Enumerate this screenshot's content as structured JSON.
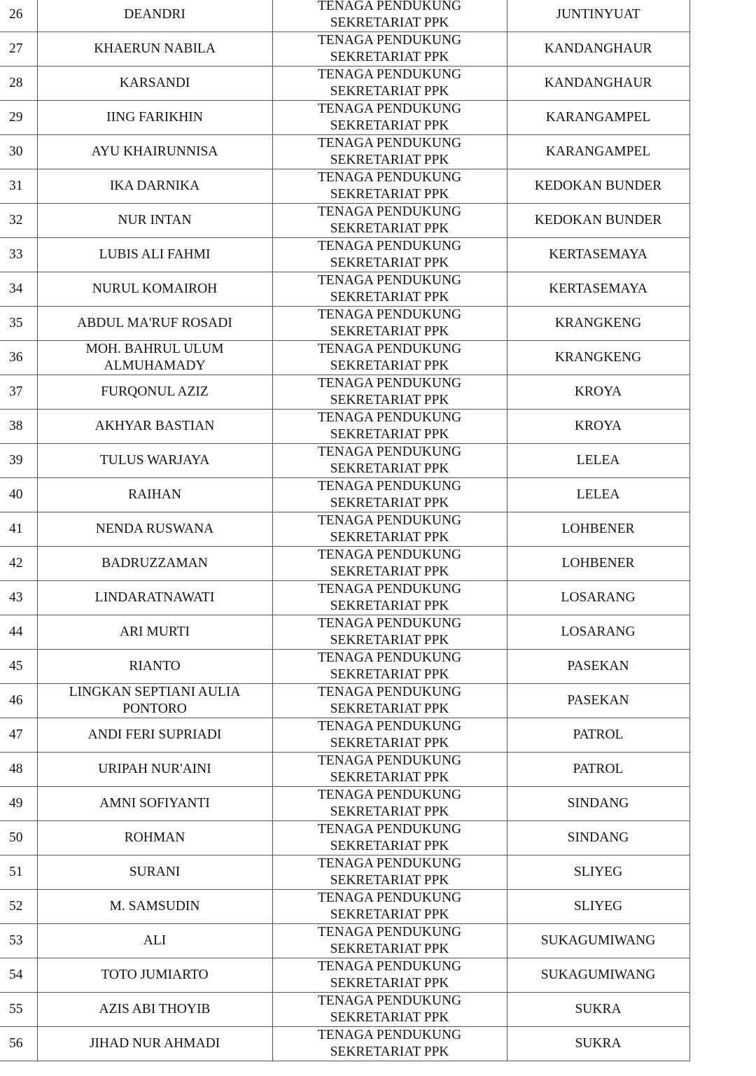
{
  "table": {
    "rows": [
      {
        "no": "26",
        "name": "DEANDRI",
        "position": "TENAGA PENDUKUNG SEKRETARIAT PPK",
        "location": "JUNTINYUAT"
      },
      {
        "no": "27",
        "name": "KHAERUN NABILA",
        "position": "TENAGA PENDUKUNG SEKRETARIAT PPK",
        "location": "KANDANGHAUR"
      },
      {
        "no": "28",
        "name": "KARSANDI",
        "position": "TENAGA PENDUKUNG SEKRETARIAT PPK",
        "location": "KANDANGHAUR"
      },
      {
        "no": "29",
        "name": "IING FARIKHIN",
        "position": "TENAGA PENDUKUNG SEKRETARIAT PPK",
        "location": "KARANGAMPEL"
      },
      {
        "no": "30",
        "name": "AYU KHAIRUNNISA",
        "position": "TENAGA PENDUKUNG SEKRETARIAT PPK",
        "location": "KARANGAMPEL"
      },
      {
        "no": "31",
        "name": "IKA DARNIKA",
        "position": "TENAGA PENDUKUNG SEKRETARIAT PPK",
        "location": "KEDOKAN BUNDER"
      },
      {
        "no": "32",
        "name": "NUR INTAN",
        "position": "TENAGA PENDUKUNG SEKRETARIAT PPK",
        "location": "KEDOKAN BUNDER"
      },
      {
        "no": "33",
        "name": "LUBIS ALI FAHMI",
        "position": "TENAGA PENDUKUNG SEKRETARIAT PPK",
        "location": "KERTASEMAYA"
      },
      {
        "no": "34",
        "name": "NURUL KOMAIROH",
        "position": "TENAGA PENDUKUNG SEKRETARIAT PPK",
        "location": "KERTASEMAYA"
      },
      {
        "no": "35",
        "name": "ABDUL MA'RUF ROSADI",
        "position": "TENAGA PENDUKUNG SEKRETARIAT PPK",
        "location": "KRANGKENG"
      },
      {
        "no": "36",
        "name": "MOH. BAHRUL ULUM ALMUHAMADY",
        "position": "TENAGA PENDUKUNG SEKRETARIAT PPK",
        "location": "KRANGKENG"
      },
      {
        "no": "37",
        "name": "FURQONUL AZIZ",
        "position": "TENAGA PENDUKUNG SEKRETARIAT PPK",
        "location": "KROYA"
      },
      {
        "no": "38",
        "name": "AKHYAR BASTIAN",
        "position": "TENAGA PENDUKUNG SEKRETARIAT PPK",
        "location": "KROYA"
      },
      {
        "no": "39",
        "name": "TULUS WARJAYA",
        "position": "TENAGA PENDUKUNG SEKRETARIAT PPK",
        "location": "LELEA"
      },
      {
        "no": "40",
        "name": "RAIHAN",
        "position": "TENAGA PENDUKUNG SEKRETARIAT PPK",
        "location": "LELEA"
      },
      {
        "no": "41",
        "name": "NENDA RUSWANA",
        "position": "TENAGA PENDUKUNG SEKRETARIAT PPK",
        "location": "LOHBENER"
      },
      {
        "no": "42",
        "name": "BADRUZZAMAN",
        "position": "TENAGA PENDUKUNG SEKRETARIAT PPK",
        "location": "LOHBENER"
      },
      {
        "no": "43",
        "name": "LINDARATNAWATI",
        "position": "TENAGA PENDUKUNG SEKRETARIAT PPK",
        "location": "LOSARANG"
      },
      {
        "no": "44",
        "name": "ARI MURTI",
        "position": "TENAGA PENDUKUNG SEKRETARIAT PPK",
        "location": "LOSARANG"
      },
      {
        "no": "45",
        "name": "RIANTO",
        "position": "TENAGA PENDUKUNG SEKRETARIAT PPK",
        "location": "PASEKAN"
      },
      {
        "no": "46",
        "name": "LINGKAN SEPTIANI AULIA PONTORO",
        "position": "TENAGA PENDUKUNG SEKRETARIAT PPK",
        "location": "PASEKAN"
      },
      {
        "no": "47",
        "name": "ANDI FERI SUPRIADI",
        "position": "TENAGA PENDUKUNG SEKRETARIAT PPK",
        "location": "PATROL"
      },
      {
        "no": "48",
        "name": "URIPAH NUR'AINI",
        "position": "TENAGA PENDUKUNG SEKRETARIAT PPK",
        "location": "PATROL"
      },
      {
        "no": "49",
        "name": "AMNI SOFIYANTI",
        "position": "TENAGA PENDUKUNG SEKRETARIAT PPK",
        "location": "SINDANG"
      },
      {
        "no": "50",
        "name": "ROHMAN",
        "position": "TENAGA PENDUKUNG SEKRETARIAT PPK",
        "location": "SINDANG"
      },
      {
        "no": "51",
        "name": "SURANI",
        "position": "TENAGA PENDUKUNG SEKRETARIAT PPK",
        "location": "SLIYEG"
      },
      {
        "no": "52",
        "name": "M. SAMSUDIN",
        "position": "TENAGA PENDUKUNG SEKRETARIAT PPK",
        "location": "SLIYEG"
      },
      {
        "no": "53",
        "name": "ALI",
        "position": "TENAGA PENDUKUNG SEKRETARIAT PPK",
        "location": "SUKAGUMIWANG"
      },
      {
        "no": "54",
        "name": "TOTO JUMIARTO",
        "position": "TENAGA PENDUKUNG SEKRETARIAT PPK",
        "location": "SUKAGUMIWANG"
      },
      {
        "no": "55",
        "name": "AZIS ABI THOYIB",
        "position": "TENAGA PENDUKUNG SEKRETARIAT PPK",
        "location": "SUKRA"
      },
      {
        "no": "56",
        "name": "JIHAD NUR AHMADI",
        "position": "TENAGA PENDUKUNG SEKRETARIAT PPK",
        "location": "SUKRA"
      }
    ]
  }
}
